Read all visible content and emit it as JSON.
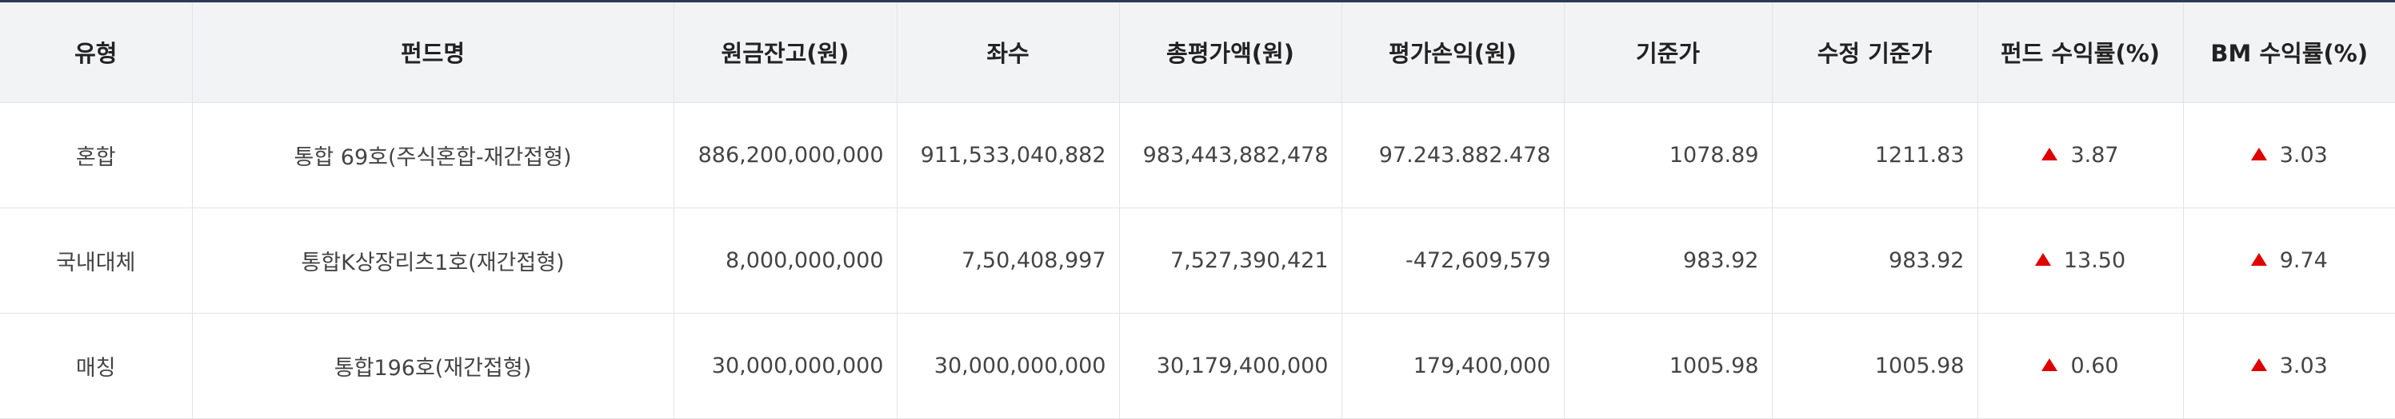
{
  "headers": [
    "유형",
    "펀드명",
    "원금잔고(원)",
    "좌수",
    "총평가액(원)",
    "평가손익(원)",
    "기준가",
    "수정 기준가",
    "펀드 수익률(%)",
    "BM 수익률(%)"
  ],
  "rows": [
    {
      "type": "혼합",
      "fund_name": "통합 69호(주식혼합-재간접형)",
      "principal": "886,200,000,000",
      "units": "911,533,040,882",
      "total_value": "983,443,882,478",
      "pnl": "97.243.882.478",
      "base_price": "1078.89",
      "adj_base_price": "1211.83",
      "fund_return": "3.87",
      "fund_return_dir": "up",
      "bm_return": "3.03",
      "bm_return_dir": "up"
    },
    {
      "type": "국내대체",
      "fund_name": "통합K상장리츠1호(재간접형)",
      "principal": "8,000,000,000",
      "units": "7,50,408,997",
      "total_value": "7,527,390,421",
      "pnl": "-472,609,579",
      "base_price": "983.92",
      "adj_base_price": "983.92",
      "fund_return": "13.50",
      "fund_return_dir": "up",
      "bm_return": "9.74",
      "bm_return_dir": "up"
    },
    {
      "type": "매칭",
      "fund_name": "통합196호(재간접형)",
      "principal": "30,000,000,000",
      "units": "30,000,000,000",
      "total_value": "30,179,400,000",
      "pnl": "179,400,000",
      "base_price": "1005.98",
      "adj_base_price": "1005.98",
      "fund_return": "0.60",
      "fund_return_dir": "up",
      "bm_return": "3.03",
      "bm_return_dir": "up"
    }
  ],
  "colors": {
    "up_arrow": "#e00000",
    "header_bg": "#f2f3f5",
    "top_border": "#2b3a55"
  }
}
